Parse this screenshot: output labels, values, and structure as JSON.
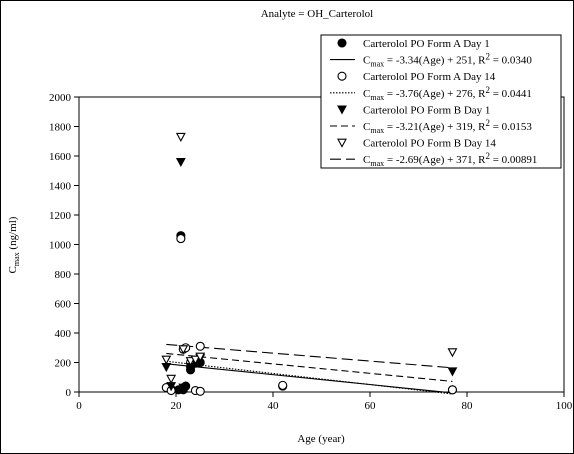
{
  "chart_data": {
    "type": "scatter",
    "title": "Analyte = OH_Carterolol",
    "xlabel": "Age (year)",
    "ylabel_main": "C",
    "ylabel_sub": "max",
    "ylabel_unit": " (ng/ml)",
    "xlim": [
      0,
      100
    ],
    "ylim": [
      0,
      2000
    ],
    "x_ticks": [
      0,
      20,
      40,
      60,
      80,
      100
    ],
    "y_ticks": [
      0,
      200,
      400,
      600,
      800,
      1000,
      1200,
      1400,
      1600,
      1800,
      2000
    ],
    "grid": false,
    "legend_position": "top-right",
    "series": [
      {
        "name": "Carterolol PO Form A  Day 1",
        "marker": "filled-circle",
        "points": [
          [
            18.5,
            30
          ],
          [
            19,
            20
          ],
          [
            20.5,
            15
          ],
          [
            21,
            1060
          ],
          [
            21.5,
            15
          ],
          [
            22,
            40
          ],
          [
            23,
            150
          ],
          [
            23,
            170
          ],
          [
            24,
            195
          ],
          [
            25,
            200
          ],
          [
            42,
            40
          ],
          [
            77,
            15
          ]
        ],
        "fit": {
          "label_pre": " = -3.34(Age) + 251, R",
          "label_post": " = 0.0340",
          "slope": -3.34,
          "intercept": 251,
          "x_range": [
            18,
            77
          ],
          "dash": "solid"
        }
      },
      {
        "name": "Carterolol PO Form A  Day 14",
        "marker": "open-circle",
        "points": [
          [
            18,
            30
          ],
          [
            19,
            10
          ],
          [
            21,
            1040
          ],
          [
            21.5,
            290
          ],
          [
            22,
            300
          ],
          [
            23,
            200
          ],
          [
            24,
            10
          ],
          [
            25,
            5
          ],
          [
            25,
            310
          ],
          [
            42,
            45
          ],
          [
            77,
            15
          ]
        ],
        "fit": {
          "label_pre": " = -3.76(Age) + 276, R",
          "label_post": " = 0.0441",
          "slope": -3.76,
          "intercept": 276,
          "x_range": [
            18,
            77
          ],
          "dash": "dotted"
        }
      },
      {
        "name": "Carterolol PO Form B  Day 1",
        "marker": "filled-triangle",
        "points": [
          [
            18,
            170
          ],
          [
            19,
            40
          ],
          [
            21,
            1560
          ],
          [
            21.5,
            30
          ],
          [
            23,
            170
          ],
          [
            24,
            200
          ],
          [
            25,
            230
          ],
          [
            77,
            140
          ]
        ],
        "fit": {
          "label_pre": " = -3.21(Age) + 319, R",
          "label_post": " = 0.0153",
          "slope": -3.21,
          "intercept": 319,
          "x_range": [
            18,
            77
          ],
          "dash": "dashed-short"
        }
      },
      {
        "name": "Carterolol PO Form B  Day 14",
        "marker": "open-triangle",
        "points": [
          [
            18,
            220
          ],
          [
            19,
            90
          ],
          [
            21,
            1730
          ],
          [
            21.5,
            290
          ],
          [
            23,
            210
          ],
          [
            24,
            220
          ],
          [
            25,
            240
          ],
          [
            77,
            270
          ]
        ],
        "fit": {
          "label_pre": " = -2.69(Age) + 371, R",
          "label_post": " = 0.00891",
          "slope": -2.69,
          "intercept": 371,
          "x_range": [
            18,
            77
          ],
          "dash": "dashed-long"
        }
      }
    ]
  }
}
